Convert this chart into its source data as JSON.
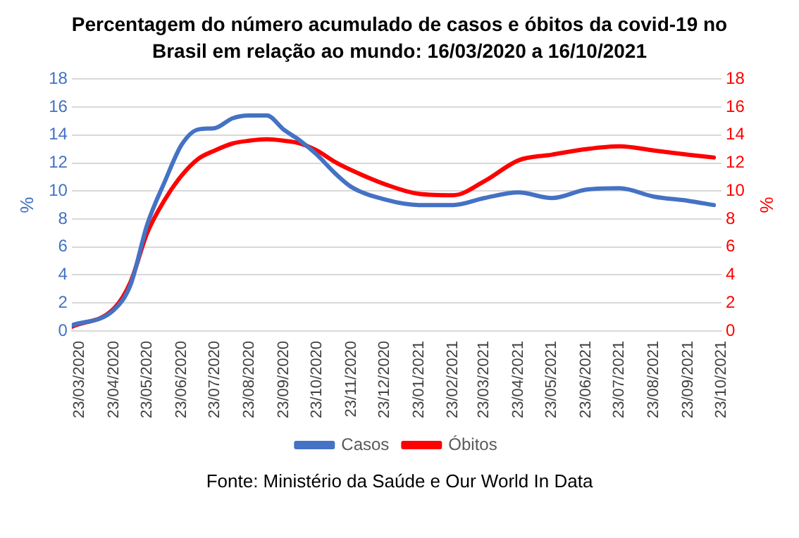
{
  "chart_data": {
    "type": "line",
    "title": "Percentagem do número acumulado de casos e óbitos da covid-19 no Brasil em relação ao mundo: 16/03/2020 a 16/10/2021",
    "ylabel": "%",
    "y2label": "%",
    "annotations": [
      "Fonte: Ministério da Saúde e Our World In Data"
    ],
    "x": [
      "2020-03-16",
      "2020-04-23",
      "2020-05-08",
      "2020-05-23",
      "2020-06-08",
      "2020-06-23",
      "2020-07-08",
      "2020-07-23",
      "2020-08-08",
      "2020-08-23",
      "2020-09-08",
      "2020-09-23",
      "2020-10-08",
      "2020-10-23",
      "2020-11-08",
      "2020-11-23",
      "2020-12-23",
      "2021-01-23",
      "2021-02-23",
      "2021-03-23",
      "2021-04-23",
      "2021-05-23",
      "2021-06-23",
      "2021-07-23",
      "2021-08-23",
      "2021-09-23",
      "2021-10-16"
    ],
    "series": [
      {
        "name": "Casos",
        "color": "#4472c4",
        "values": [
          0.4,
          1.5,
          3.3,
          7.6,
          10.7,
          13.3,
          14.4,
          14.5,
          15.2,
          15.4,
          15.4,
          14.4,
          13.6,
          12.6,
          11.3,
          10.3,
          9.4,
          9.0,
          9.0,
          9.5,
          9.9,
          9.5,
          10.1,
          10.2,
          9.6,
          9.3,
          9.0
        ]
      },
      {
        "name": "Óbitos",
        "color": "#ff0000",
        "axis": "y2",
        "values": [
          0.3,
          1.6,
          3.5,
          7.0,
          9.4,
          11.1,
          12.3,
          12.9,
          13.4,
          13.6,
          13.7,
          13.6,
          13.4,
          12.9,
          12.1,
          11.5,
          10.5,
          9.8,
          9.7,
          10.7,
          12.2,
          12.6,
          13.0,
          13.2,
          12.9,
          12.6,
          12.4
        ]
      }
    ],
    "xlim": [
      "2020-03-16",
      "2021-10-23"
    ],
    "xticks": [
      {
        "value": "2020-03-23",
        "label": "23/03/2020"
      },
      {
        "value": "2020-04-23",
        "label": "23/04/2020"
      },
      {
        "value": "2020-05-23",
        "label": "23/05/2020"
      },
      {
        "value": "2020-06-23",
        "label": "23/06/2020"
      },
      {
        "value": "2020-07-23",
        "label": "23/07/2020"
      },
      {
        "value": "2020-08-23",
        "label": "23/08/2020"
      },
      {
        "value": "2020-09-23",
        "label": "23/09/2020"
      },
      {
        "value": "2020-10-23",
        "label": "23/10/2020"
      },
      {
        "value": "2020-11-23",
        "label": "23/11/2020"
      },
      {
        "value": "2020-12-23",
        "label": "23/12/2020"
      },
      {
        "value": "2021-01-23",
        "label": "23/01/2021"
      },
      {
        "value": "2021-02-23",
        "label": "23/02/2021"
      },
      {
        "value": "2021-03-23",
        "label": "23/03/2021"
      },
      {
        "value": "2021-04-23",
        "label": "23/04/2021"
      },
      {
        "value": "2021-05-23",
        "label": "23/05/2021"
      },
      {
        "value": "2021-06-23",
        "label": "23/06/2021"
      },
      {
        "value": "2021-07-23",
        "label": "23/07/2021"
      },
      {
        "value": "2021-08-23",
        "label": "23/08/2021"
      },
      {
        "value": "2021-09-23",
        "label": "23/09/2021"
      },
      {
        "value": "2021-10-23",
        "label": "23/10/2021"
      }
    ],
    "ylim": [
      0,
      18
    ],
    "yticks": [
      0,
      2,
      4,
      6,
      8,
      10,
      12,
      14,
      16,
      18
    ],
    "y2lim": [
      0,
      18
    ],
    "y2ticks": [
      0,
      2,
      4,
      6,
      8,
      10,
      12,
      14,
      16,
      18
    ],
    "grid": "y",
    "legend": "bottom",
    "marker": "none",
    "line_style": "solid"
  }
}
